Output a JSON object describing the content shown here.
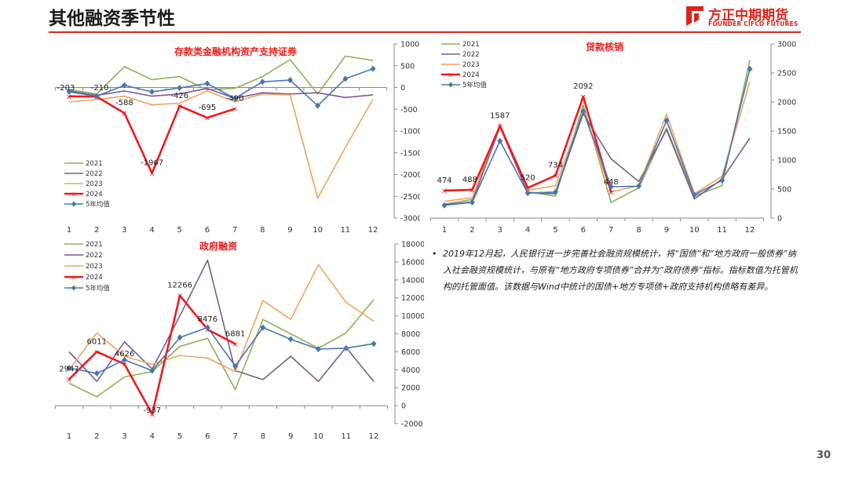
{
  "header": {
    "title": "其他融资季节性"
  },
  "logo": {
    "name_cn": "方正中期期货",
    "name_en": "FOUNDER CIFCO FUTURES"
  },
  "colors": {
    "y2021": "#8db155",
    "y2022": "#7a5c99",
    "y2023": "#f2a35e",
    "y2024": "#ee1c1c",
    "avg": "#4a76b0",
    "accent": "#d9261c"
  },
  "chart_data": [
    {
      "id": "abs",
      "type": "line",
      "title": "存款类金融机构资产支持证券",
      "x": [
        1,
        2,
        3,
        4,
        5,
        6,
        7,
        8,
        9,
        10,
        11,
        12
      ],
      "ylim": [
        -3000,
        1000
      ],
      "yticks": [
        -3000,
        -2500,
        -2000,
        -1500,
        -1000,
        -500,
        0,
        500,
        1000
      ],
      "series": [
        {
          "name": "2021",
          "values": [
            -50,
            -150,
            480,
            180,
            250,
            -50,
            -20,
            250,
            640,
            -150,
            720,
            620
          ]
        },
        {
          "name": "2022",
          "values": [
            -80,
            -180,
            -80,
            -200,
            -150,
            -20,
            -250,
            -120,
            -150,
            -120,
            -230,
            -170
          ]
        },
        {
          "name": "2023",
          "values": [
            -330,
            -280,
            -200,
            -400,
            -360,
            -80,
            -330,
            -150,
            -170,
            -2540,
            -1380,
            -270
          ]
        },
        {
          "name": "2024",
          "values": [
            -203,
            -210,
            -588,
            -1967,
            -426,
            -695,
            -490
          ]
        },
        {
          "name": "5年均值",
          "values": [
            -100,
            -200,
            50,
            -100,
            -10,
            90,
            -250,
            130,
            170,
            -420,
            200,
            430
          ]
        }
      ],
      "labels": [
        "-203",
        "-210",
        "-588",
        "-1967",
        "-426",
        "-695",
        "-490"
      ],
      "legend": "bottom-left"
    },
    {
      "id": "loan",
      "type": "line",
      "title": "贷款核销",
      "x": [
        1,
        2,
        3,
        4,
        5,
        6,
        7,
        8,
        9,
        10,
        11,
        12
      ],
      "ylim": [
        0,
        3000
      ],
      "yticks": [
        0,
        500,
        1000,
        1500,
        2000,
        2500,
        3000
      ],
      "series": [
        {
          "name": "2021",
          "values": [
            240,
            320,
            1590,
            450,
            380,
            1950,
            270,
            520,
            1550,
            380,
            560,
            2720
          ]
        },
        {
          "name": "2022",
          "values": [
            230,
            280,
            1570,
            440,
            420,
            1800,
            1020,
            630,
            1520,
            330,
            670,
            1380
          ]
        },
        {
          "name": "2023",
          "values": [
            290,
            350,
            1620,
            480,
            560,
            1850,
            450,
            560,
            1790,
            420,
            720,
            2350
          ]
        },
        {
          "name": "2024",
          "values": [
            474,
            488,
            1587,
            520,
            734,
            2092,
            448
          ]
        },
        {
          "name": "5年均值",
          "values": [
            220,
            270,
            1330,
            430,
            450,
            1840,
            540,
            550,
            1680,
            400,
            650,
            2570
          ]
        }
      ],
      "labels": [
        "474",
        "488",
        "1587",
        "520",
        "734",
        "2092",
        "448"
      ],
      "legend": "top-left"
    },
    {
      "id": "gov",
      "type": "line",
      "title": "政府融资",
      "x": [
        1,
        2,
        3,
        4,
        5,
        6,
        7,
        8,
        9,
        10,
        11,
        12
      ],
      "ylim": [
        -2000,
        18000
      ],
      "yticks": [
        -2000,
        0,
        2000,
        4000,
        6000,
        8000,
        10000,
        12000,
        14000,
        16000,
        18000
      ],
      "series": [
        {
          "name": "2021",
          "values": [
            2500,
            1000,
            3200,
            3800,
            6600,
            7500,
            1800,
            9600,
            8000,
            6400,
            8100,
            11800
          ]
        },
        {
          "name": "2022",
          "values": [
            6000,
            2700,
            7100,
            4100,
            10000,
            16200,
            3900,
            2900,
            5500,
            2700,
            6500,
            2700
          ]
        },
        {
          "name": "2023",
          "values": [
            4000,
            8100,
            5500,
            4600,
            5600,
            5300,
            3800,
            11700,
            9600,
            15700,
            11500,
            9400
          ]
        },
        {
          "name": "2024",
          "values": [
            2947,
            6011,
            4626,
            -937,
            12266,
            8476,
            6881
          ]
        },
        {
          "name": "5年均值",
          "values": [
            4200,
            3600,
            5100,
            3900,
            7600,
            8700,
            4400,
            8700,
            7400,
            6300,
            6400,
            6900
          ]
        }
      ],
      "labels": [
        "2947",
        "6011",
        "4626",
        "-937",
        "12266",
        "8476",
        "6881"
      ],
      "legend": "top-left"
    }
  ],
  "note": {
    "bullet": "•",
    "text": "2019年12月起，人民银行进一步完善社会融资规模统计，将“国债”和“地方政府一般债券”纳入社会融资规模统计，与原有“地方政府专项债券”合并为“政府债券”指标。指标数值为托管机构的托管面值。该数据与Wind中统计的国债+地方专项债+政府支持机构债略有差异。"
  },
  "page": {
    "number": "30"
  }
}
